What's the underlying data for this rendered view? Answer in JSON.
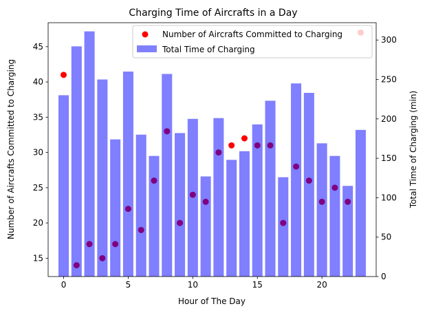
{
  "chart_data": {
    "type": "bar",
    "title": "Charging Time of Aircrafts in a Day",
    "xlabel": "Hour of The Day",
    "ylabel_left": "Number of Aircrafts Committed to Charging",
    "ylabel_right": "Total Time of Charging (min)",
    "x": [
      0,
      1,
      2,
      3,
      4,
      5,
      6,
      7,
      8,
      9,
      10,
      11,
      12,
      13,
      14,
      15,
      16,
      17,
      18,
      19,
      20,
      21,
      22,
      23
    ],
    "xlim": [
      -1.2,
      24.2
    ],
    "xticks": [
      0,
      5,
      10,
      15,
      20
    ],
    "ylim_left": [
      12.4,
      48.4
    ],
    "yticks_left": [
      15,
      20,
      25,
      30,
      35,
      40,
      45
    ],
    "ylim_right": [
      0,
      322
    ],
    "yticks_right": [
      0,
      50,
      100,
      150,
      200,
      250,
      300
    ],
    "legend_position": "top-right",
    "series": [
      {
        "name": "Number of Aircrafts Committed to Charging",
        "kind": "scatter",
        "axis": "left",
        "color": "#ff0000",
        "values": [
          41,
          14,
          17,
          15,
          17,
          22,
          19,
          26,
          33,
          20,
          24,
          23,
          30,
          31,
          32,
          31,
          31,
          20,
          28,
          26,
          23,
          25,
          23,
          47
        ]
      },
      {
        "name": "Total Time of Charging",
        "kind": "bar",
        "axis": "right",
        "color": "#8080ff",
        "values": [
          230,
          292,
          311,
          250,
          174,
          260,
          180,
          153,
          257,
          182,
          200,
          127,
          201,
          148,
          159,
          193,
          223,
          126,
          245,
          233,
          169,
          153,
          115,
          186
        ]
      }
    ]
  }
}
